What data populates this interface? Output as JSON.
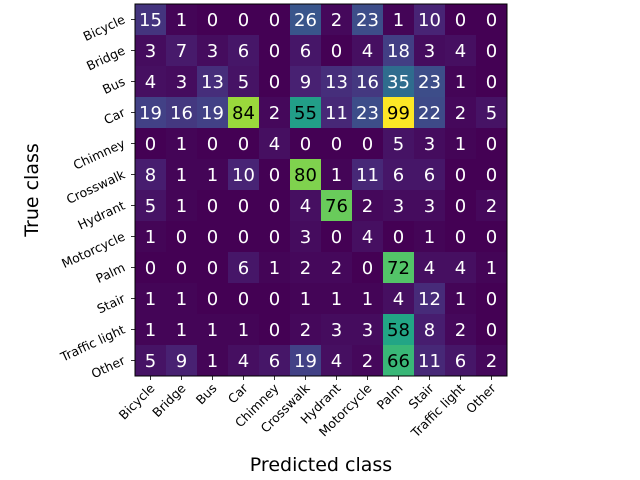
{
  "chart_data": {
    "type": "heatmap",
    "xlabel": "Predicted class",
    "ylabel": "True class",
    "classes": [
      "Bicycle",
      "Bridge",
      "Bus",
      "Car",
      "Chimney",
      "Crosswalk",
      "Hydrant",
      "Motorcycle",
      "Palm",
      "Stair",
      "Traffic light",
      "Other"
    ],
    "matrix": [
      [
        15,
        1,
        0,
        0,
        0,
        26,
        2,
        23,
        1,
        10,
        0,
        0
      ],
      [
        3,
        7,
        3,
        6,
        0,
        6,
        0,
        4,
        18,
        3,
        4,
        0
      ],
      [
        4,
        3,
        13,
        5,
        0,
        9,
        13,
        16,
        35,
        23,
        1,
        0
      ],
      [
        19,
        16,
        19,
        84,
        2,
        55,
        11,
        23,
        99,
        22,
        2,
        5
      ],
      [
        0,
        1,
        0,
        0,
        4,
        0,
        0,
        0,
        5,
        3,
        1,
        0
      ],
      [
        8,
        1,
        1,
        10,
        0,
        80,
        1,
        11,
        6,
        6,
        0,
        0
      ],
      [
        5,
        1,
        0,
        0,
        0,
        4,
        76,
        2,
        3,
        3,
        0,
        2
      ],
      [
        1,
        0,
        0,
        0,
        0,
        3,
        0,
        4,
        0,
        1,
        0,
        0
      ],
      [
        0,
        0,
        0,
        6,
        1,
        2,
        2,
        0,
        72,
        4,
        4,
        1
      ],
      [
        1,
        1,
        0,
        0,
        0,
        1,
        1,
        1,
        4,
        12,
        1,
        0
      ],
      [
        1,
        1,
        1,
        1,
        0,
        2,
        3,
        3,
        58,
        8,
        2,
        0
      ],
      [
        5,
        9,
        1,
        4,
        6,
        19,
        4,
        2,
        66,
        11,
        6,
        2
      ]
    ],
    "colormap": "viridis",
    "vmin": 0,
    "vmax": 99,
    "grid": false
  }
}
